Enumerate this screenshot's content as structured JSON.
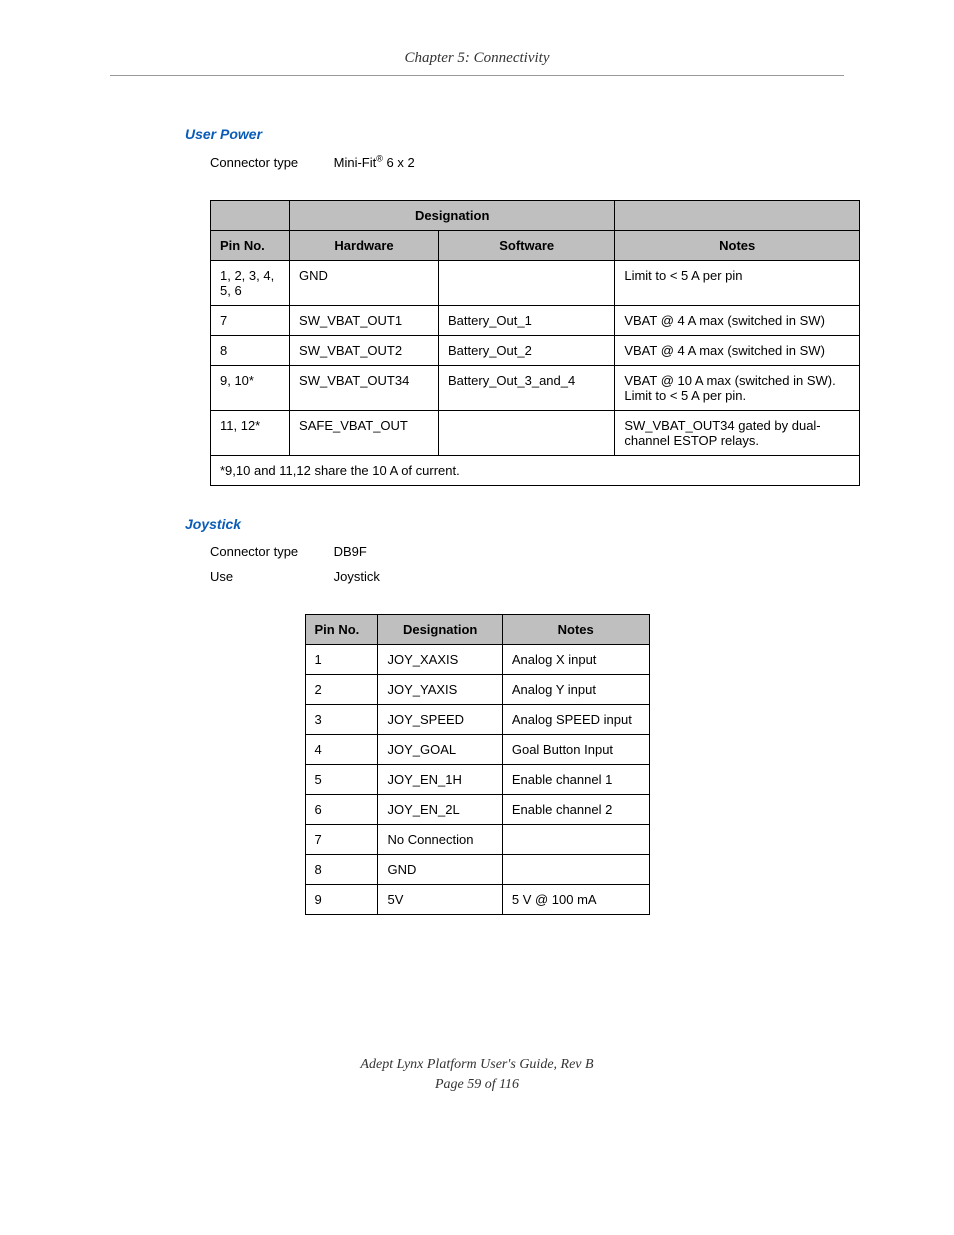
{
  "header": {
    "chapter": "Chapter 5: Connectivity"
  },
  "sections": {
    "user_power": {
      "title": "User Power",
      "connector_label": "Connector type",
      "connector_value_pre": "Mini-Fit",
      "connector_sup": "®",
      "connector_value_post": " 6 x 2",
      "table": {
        "headers": {
          "designation": "Designation",
          "pin": "Pin No.",
          "hardware": "Hardware",
          "software": "Software",
          "notes": "Notes"
        },
        "rows": [
          {
            "pin": "1, 2, 3, 4, 5, 6",
            "hardware": "GND",
            "software": "",
            "notes": "Limit to < 5 A per pin"
          },
          {
            "pin": "7",
            "hardware": "SW_VBAT_OUT1",
            "software": "Battery_Out_1",
            "notes": "VBAT @ 4 A max (switched in SW)"
          },
          {
            "pin": "8",
            "hardware": "SW_VBAT_OUT2",
            "software": "Battery_Out_2",
            "notes": "VBAT @ 4 A max (switched in SW)"
          },
          {
            "pin": "9, 10*",
            "hardware": "SW_VBAT_OUT34",
            "software": "Battery_Out_3_and_4",
            "notes": "VBAT @ 10 A max (switched in SW). Limit to < 5 A per pin."
          },
          {
            "pin": "11, 12*",
            "hardware": "SAFE_VBAT_OUT",
            "software": "",
            "notes": "SW_VBAT_OUT34 gated by dual-channel ESTOP relays."
          }
        ],
        "footnote": "*9,10 and 11,12 share the 10 A of current."
      }
    },
    "joystick": {
      "title": "Joystick",
      "connector_label": "Connector type",
      "connector_value": "DB9F",
      "use_label": "Use",
      "use_value": "Joystick",
      "table": {
        "headers": {
          "pin": "Pin No.",
          "designation": "Designation",
          "notes": "Notes"
        },
        "rows": [
          {
            "pin": "1",
            "designation": "JOY_XAXIS",
            "notes": "Analog X input"
          },
          {
            "pin": "2",
            "designation": "JOY_YAXIS",
            "notes": "Analog Y input"
          },
          {
            "pin": "3",
            "designation": "JOY_SPEED",
            "notes": "Analog SPEED input"
          },
          {
            "pin": "4",
            "designation": "JOY_GOAL",
            "notes": "Goal Button Input"
          },
          {
            "pin": "5",
            "designation": "JOY_EN_1H",
            "notes": "Enable channel 1"
          },
          {
            "pin": "6",
            "designation": "JOY_EN_2L",
            "notes": "Enable channel 2"
          },
          {
            "pin": "7",
            "designation": "No Connection",
            "notes": ""
          },
          {
            "pin": "8",
            "designation": "GND",
            "notes": ""
          },
          {
            "pin": "9",
            "designation": "5V",
            "notes": "5 V @ 100 mA"
          }
        ]
      }
    }
  },
  "footer": {
    "line1": "Adept Lynx Platform User's Guide, Rev B",
    "line2": "Page 59 of 116"
  }
}
